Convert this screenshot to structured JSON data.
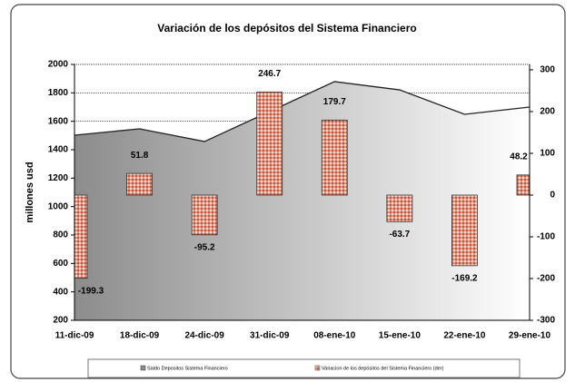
{
  "chart_data": {
    "type": "area_bar",
    "title": "Variación de los depósitos del Sistema Financiero",
    "ylabel": "millones usd",
    "categories": [
      "11-dic-09",
      "18-dic-09",
      "24-dic-09",
      "31-dic-09",
      "08-ene-10",
      "15-ene-10",
      "22-ene-10",
      "29-ene-10"
    ],
    "series": [
      {
        "name": "Saldo Depositos Sistema Financiero",
        "color": "#8c8c8c",
        "values": [
          1502,
          1547,
          1458,
          1668,
          1879,
          1821,
          1649,
          1700
        ]
      },
      {
        "name": "Variacion de los depósitos del Sistema Financiero (der)",
        "color": "#c8553d",
        "axis": "y2",
        "values": [
          -199.3,
          51.8,
          -95.2,
          246.7,
          179.7,
          -63.7,
          -169.2,
          48.2
        ]
      }
    ],
    "ylim": [
      200,
      2000
    ],
    "yticks": [
      200,
      400,
      600,
      800,
      1000,
      1200,
      1400,
      1600,
      1800,
      2000
    ],
    "y2lim": [
      -300,
      313
    ],
    "y2ticks": [
      -300,
      -200,
      -100,
      0,
      100,
      200,
      300
    ],
    "grid": true,
    "legend": "bottom"
  }
}
